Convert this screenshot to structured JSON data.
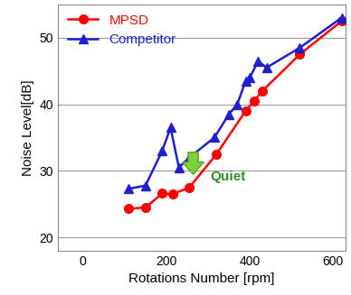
{
  "chart_data": {
    "type": "line",
    "xlabel": "Rotations Number [rpm]",
    "ylabel": "Noise Level[dB]",
    "annotation": "Quiet",
    "xlim": [
      -60,
      630
    ],
    "xticks": [
      0,
      200,
      400,
      600
    ],
    "ylim": [
      18,
      55
    ],
    "yticks": [
      20,
      30,
      40,
      50
    ],
    "grid": true,
    "legend": "upper left",
    "series": [
      {
        "name": "MPSD",
        "color": "#ff0000",
        "marker": "circle",
        "line_style": "solid",
        "x": [
          110,
          150,
          190,
          215,
          255,
          320,
          390,
          410,
          430,
          520,
          620
        ],
        "values": [
          24.3,
          24.5,
          26.6,
          26.5,
          27.5,
          32.5,
          39,
          40.5,
          42,
          47.5,
          52.5
        ]
      },
      {
        "name": "Competitor",
        "color": "#1f1fd0",
        "marker": "triangle",
        "line_style": "solid",
        "x": [
          110,
          150,
          190,
          210,
          230,
          255,
          315,
          350,
          370,
          390,
          400,
          420,
          440,
          520,
          620
        ],
        "values": [
          27.3,
          27.8,
          33,
          36.5,
          30.5,
          32,
          35,
          38.5,
          40,
          43.5,
          44,
          46.5,
          45.5,
          48.5,
          53
        ]
      }
    ]
  }
}
